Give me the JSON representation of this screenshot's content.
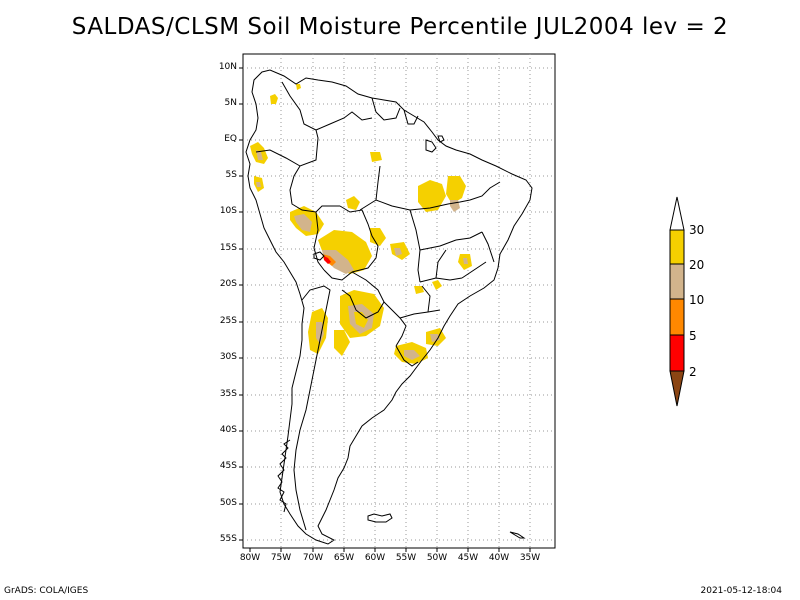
{
  "title": "SALDAS/CLSM Soil Moisture Percentile JUL2004 lev = 2",
  "lat_ticks": [
    "10N",
    "5N",
    "EQ",
    "5S",
    "10S",
    "15S",
    "20S",
    "25S",
    "30S",
    "35S",
    "40S",
    "45S",
    "50S",
    "55S"
  ],
  "lon_ticks": [
    "80W",
    "75W",
    "70W",
    "65W",
    "60W",
    "55W",
    "50W",
    "45W",
    "40W",
    "35W"
  ],
  "legend": {
    "labels": [
      "30",
      "20",
      "10",
      "5",
      "2"
    ],
    "colors": {
      "above_30": "#ffffff",
      "20_30": "#f5d000",
      "10_20": "#d2b48c",
      "5_10": "#ff8800",
      "2_5": "#ff0000",
      "below_2": "#8b4513"
    }
  },
  "footer": {
    "left": "GrADS: COLA/IGES",
    "right": "2021-05-12-18:04"
  }
}
